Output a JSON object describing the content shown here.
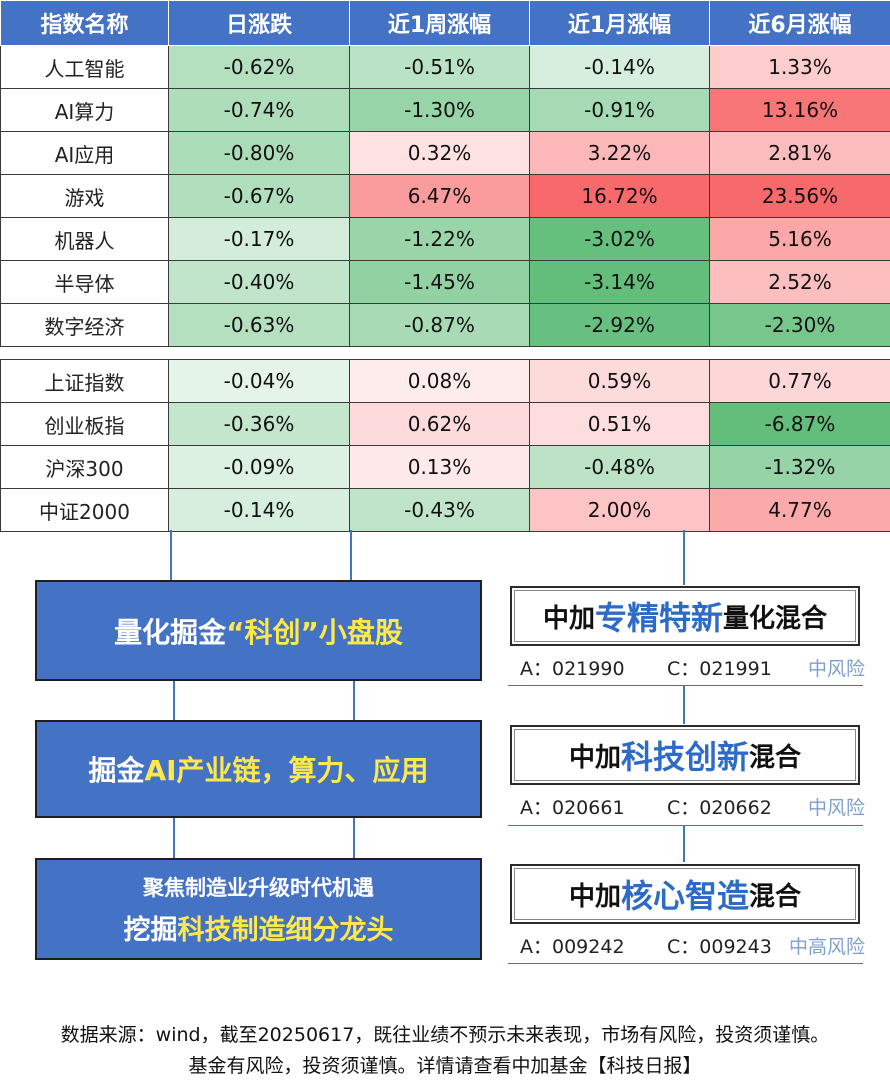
{
  "table": {
    "headers": [
      "指数名称",
      "日涨跌",
      "近1周涨幅",
      "近1月涨幅",
      "近6月涨幅"
    ],
    "group1": [
      {
        "name": "人工智能",
        "values": [
          "-0.62%",
          "-0.51%",
          "-0.14%",
          "1.33%"
        ]
      },
      {
        "name": "AI算力",
        "values": [
          "-0.74%",
          "-1.30%",
          "-0.91%",
          "13.16%"
        ]
      },
      {
        "name": "AI应用",
        "values": [
          "-0.80%",
          "0.32%",
          "3.22%",
          "2.81%"
        ]
      },
      {
        "name": "游戏",
        "values": [
          "-0.67%",
          "6.47%",
          "16.72%",
          "23.56%"
        ]
      },
      {
        "name": "机器人",
        "values": [
          "-0.17%",
          "-1.22%",
          "-3.02%",
          "5.16%"
        ]
      },
      {
        "name": "半导体",
        "values": [
          "-0.40%",
          "-1.45%",
          "-3.14%",
          "2.52%"
        ]
      },
      {
        "name": "数字经济",
        "values": [
          "-0.63%",
          "-0.87%",
          "-2.92%",
          "-2.30%"
        ]
      }
    ],
    "group2": [
      {
        "name": "上证指数",
        "values": [
          "-0.04%",
          "0.08%",
          "0.59%",
          "0.77%"
        ]
      },
      {
        "name": "创业板指",
        "values": [
          "-0.36%",
          "0.62%",
          "0.51%",
          "-6.87%"
        ]
      },
      {
        "name": "沪深300",
        "values": [
          "-0.09%",
          "0.13%",
          "-0.48%",
          "-1.32%"
        ]
      },
      {
        "name": "中证2000",
        "values": [
          "-0.14%",
          "-0.43%",
          "2.00%",
          "4.77%"
        ]
      }
    ],
    "colors": {
      "header": "#4472c4",
      "positive": "#f8696b",
      "negative": "#63be7b"
    }
  },
  "themes": [
    {
      "pre": "量化掘金",
      "hl": "“科创”",
      "post": "小盘股"
    },
    {
      "pre": "掘金",
      "hl": "AI产业链，算力、应用",
      "post": ""
    },
    {
      "line1": "聚焦制造业升级时代机遇",
      "pre": "挖掘",
      "hl": "科技制造细分龙头",
      "post": ""
    }
  ],
  "funds": [
    {
      "prefix": "中加",
      "keyword": "专精特新",
      "suffix": "量化混合",
      "code_a": "A：021990",
      "code_c": "C：021991",
      "risk": "中风险"
    },
    {
      "prefix": "中加",
      "keyword": "科技创新",
      "suffix": "混合",
      "code_a": "A：020661",
      "code_c": "C：020662",
      "risk": "中风险"
    },
    {
      "prefix": "中加",
      "keyword": "核心智造",
      "suffix": "混合",
      "code_a": "A：009242",
      "code_c": "C：009243",
      "risk": "中高风险"
    }
  ],
  "footer": {
    "line1": "数据来源：wind，截至20250617，既往业绩不预示未来表现，市场有风险，投资须谨慎。",
    "line2": "基金有风险，投资须谨慎。详情请查看中加基金【科技日报】"
  }
}
